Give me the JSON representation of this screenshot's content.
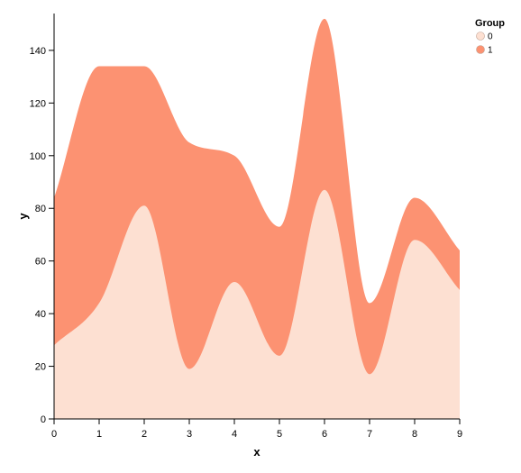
{
  "chart_data": {
    "type": "area",
    "stacked": true,
    "x": [
      0,
      1,
      2,
      3,
      4,
      5,
      6,
      7,
      8,
      9
    ],
    "series": [
      {
        "name": "0",
        "color": "#fde0d2",
        "values": [
          28,
          44,
          81,
          19,
          52,
          24,
          87,
          17,
          68,
          49
        ]
      },
      {
        "name": "1",
        "color": "#fc9272",
        "values": [
          56,
          90,
          53,
          86,
          48,
          49,
          65,
          27,
          16,
          15
        ]
      }
    ],
    "xlabel": "x",
    "ylabel": "y",
    "xlim": [
      0,
      9
    ],
    "ylim": [
      0,
      154
    ],
    "xticks": [
      "0",
      "1",
      "2",
      "3",
      "4",
      "5",
      "6",
      "7",
      "8",
      "9"
    ],
    "yticks": [
      "0",
      "20",
      "40",
      "60",
      "80",
      "100",
      "120",
      "140"
    ],
    "grid": false,
    "legend": {
      "title": "Group",
      "position": "top-right",
      "entries": [
        "0",
        "1"
      ]
    }
  }
}
